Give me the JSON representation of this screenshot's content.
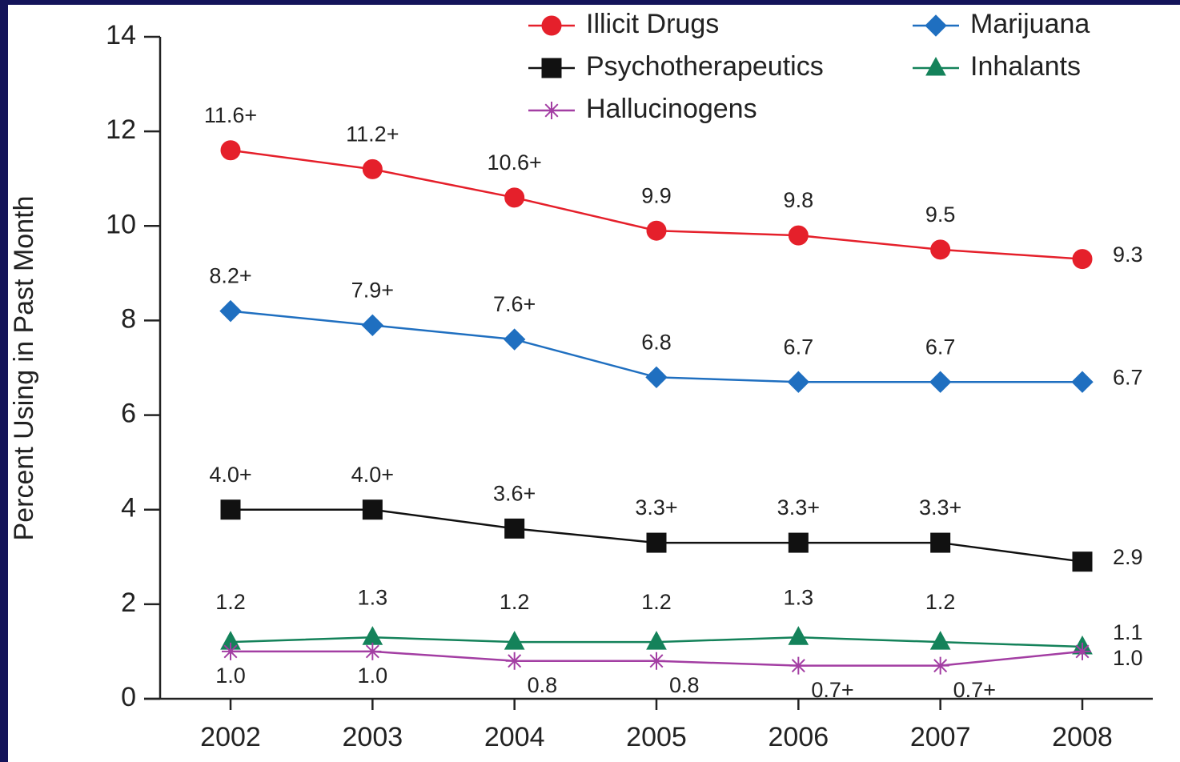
{
  "chart_data": {
    "type": "line",
    "y_label": "Percent Using in Past Month",
    "x": [
      "2002",
      "2003",
      "2004",
      "2005",
      "2006",
      "2007",
      "2008"
    ],
    "ylim": [
      0,
      14
    ],
    "yticks": [
      0,
      2,
      4,
      6,
      8,
      10,
      12,
      14
    ],
    "series": [
      {
        "name": "Illicit Drugs",
        "color": "#e5202b",
        "marker": "circle",
        "values": [
          11.6,
          11.2,
          10.6,
          9.9,
          9.8,
          9.5,
          9.3
        ],
        "value_labels": [
          "11.6+",
          "11.2+",
          "10.6+",
          "9.9",
          "9.8",
          "9.5",
          "9.3"
        ]
      },
      {
        "name": "Marijuana",
        "color": "#1f6fc0",
        "marker": "diamond",
        "values": [
          8.2,
          7.9,
          7.6,
          6.8,
          6.7,
          6.7,
          6.7
        ],
        "value_labels": [
          "8.2+",
          "7.9+",
          "7.6+",
          "6.8",
          "6.7",
          "6.7",
          "6.7"
        ]
      },
      {
        "name": "Psychotherapeutics",
        "color": "#111111",
        "marker": "square",
        "values": [
          4.0,
          4.0,
          3.6,
          3.3,
          3.3,
          3.3,
          2.9
        ],
        "value_labels": [
          "4.0+",
          "4.0+",
          "3.6+",
          "3.3+",
          "3.3+",
          "3.3+",
          "2.9"
        ]
      },
      {
        "name": "Inhalants",
        "color": "#14825a",
        "marker": "triangle",
        "values": [
          1.2,
          1.3,
          1.2,
          1.2,
          1.3,
          1.2,
          1.1
        ],
        "value_labels": [
          "1.2",
          "1.3",
          "1.2",
          "1.2",
          "1.3",
          "1.2",
          "1.1"
        ]
      },
      {
        "name": "Hallucinogens",
        "color": "#a33ea3",
        "marker": "asterisk",
        "values": [
          1.0,
          1.0,
          0.8,
          0.8,
          0.7,
          0.7,
          1.0
        ],
        "value_labels": [
          "1.0",
          "1.0",
          "0.8",
          "0.8",
          "0.7+",
          "0.7+",
          "1.0"
        ]
      }
    ]
  }
}
